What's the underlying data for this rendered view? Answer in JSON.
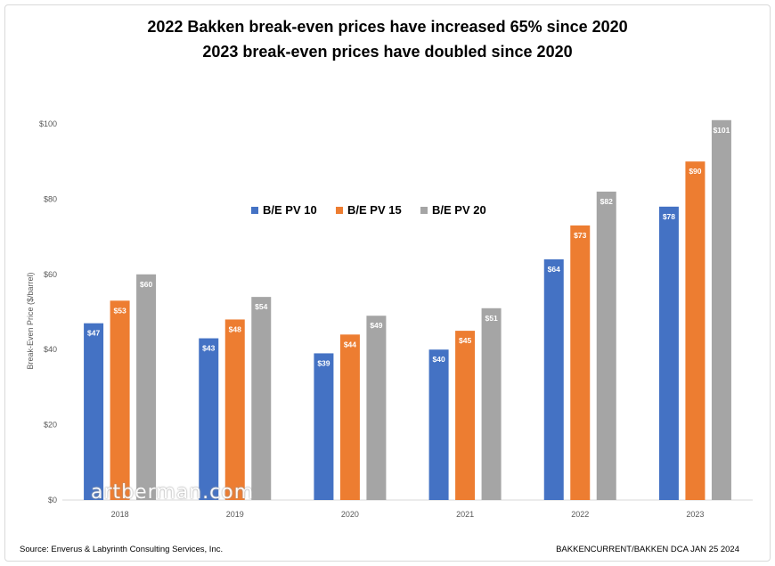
{
  "chart_data": {
    "type": "bar",
    "title": "2022 Bakken break-even prices have increased 65% since 2020",
    "subtitle": "2023 break-even prices have doubled since 2020",
    "xlabel": "",
    "ylabel": "Break-Even Price ($/barrel)",
    "ylim": [
      0,
      100
    ],
    "yticks": [
      "$0",
      "$20",
      "$40",
      "$60",
      "$80",
      "$100"
    ],
    "ytick_values": [
      0,
      20,
      40,
      60,
      80,
      100
    ],
    "grid": false,
    "legend_position": "center",
    "categories": [
      "2018",
      "2019",
      "2020",
      "2021",
      "2022",
      "2023"
    ],
    "series": [
      {
        "name": "B/E PV 10",
        "color": "#4472c4",
        "values": [
          47,
          43,
          39,
          40,
          64,
          78
        ],
        "labels": [
          "$47",
          "$43",
          "$39",
          "$40",
          "$64",
          "$78"
        ]
      },
      {
        "name": "B/E PV 15",
        "color": "#ed7d31",
        "values": [
          53,
          48,
          44,
          45,
          73,
          90
        ],
        "labels": [
          "$53",
          "$48",
          "$44",
          "$45",
          "$73",
          "$90"
        ]
      },
      {
        "name": "B/E PV 20",
        "color": "#a5a5a5",
        "values": [
          60,
          54,
          49,
          51,
          82,
          101
        ],
        "labels": [
          "$60",
          "$54",
          "$49",
          "$51",
          "$82",
          "$101"
        ]
      }
    ]
  },
  "footer": {
    "source": "Source:  Enverus & Labyrinth Consulting Services, Inc.",
    "reference": "BAKKENCURRENT/BAKKEN DCA JAN 25 2024"
  },
  "watermark": "artberman.com"
}
